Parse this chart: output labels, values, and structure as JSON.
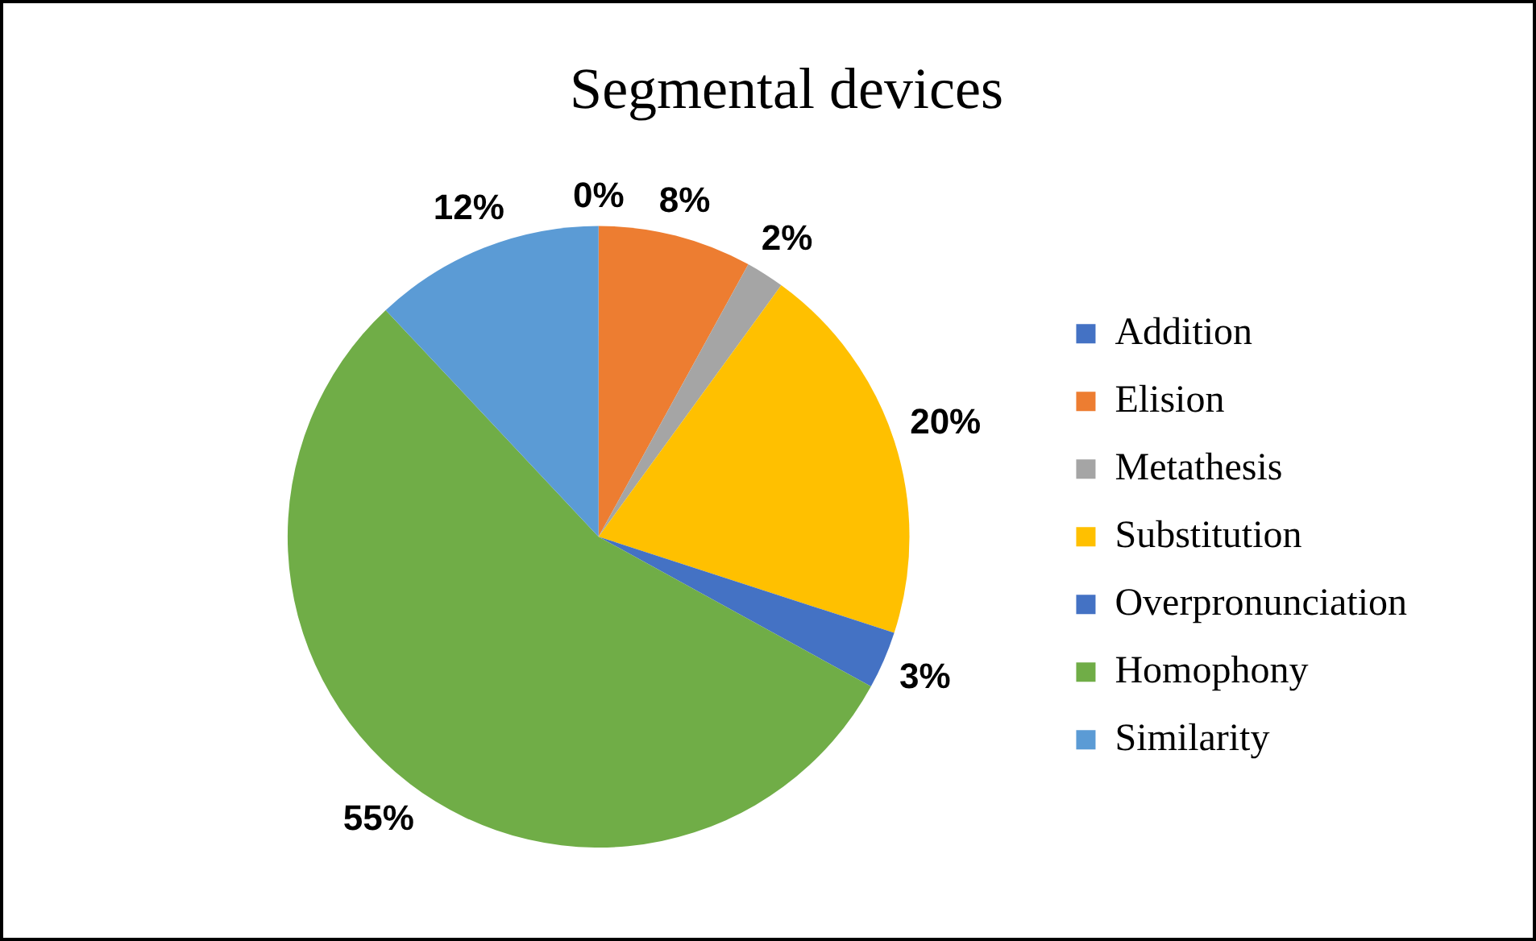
{
  "chart_data": {
    "type": "pie",
    "title": "Segmental devices",
    "categories": [
      "Addition",
      "Elision",
      "Metathesis",
      "Substitution",
      "Overpronunciation",
      "Homophony",
      "Similarity"
    ],
    "values": [
      0,
      8,
      2,
      20,
      3,
      55,
      12
    ],
    "colors": [
      "#4472c4",
      "#ed7d31",
      "#a5a5a5",
      "#ffc000",
      "#4472c4",
      "#70ad47",
      "#5b9bd5"
    ],
    "value_labels": [
      "0%",
      "8%",
      "2%",
      "20%",
      "3%",
      "55%",
      "12%"
    ],
    "legend": "right"
  }
}
